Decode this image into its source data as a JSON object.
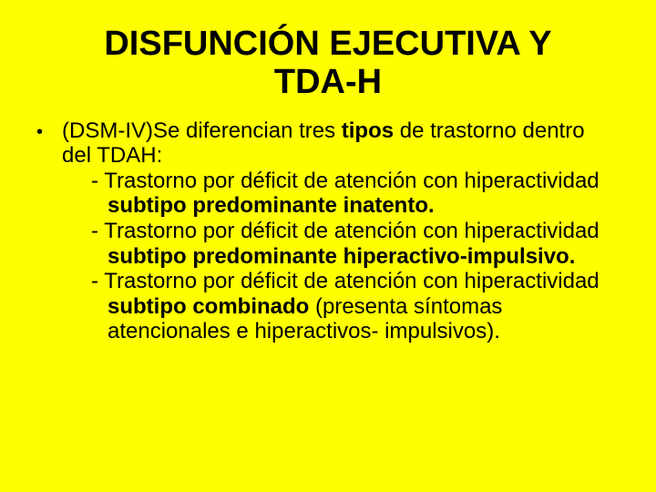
{
  "background_color": "#ffff00",
  "text_color": "#000000",
  "font_family": "Comic Sans MS",
  "title": {
    "line1": "DISFUNCIÓN EJECUTIVA Y",
    "line2": "TDA-H",
    "fontsize": 38,
    "weight": "bold",
    "align": "center"
  },
  "bullet": {
    "marker": "•",
    "intro_pre": "(DSM-IV)Se diferencian tres ",
    "intro_bold": "tipos",
    "intro_post": " de trastorno dentro del TDAH:",
    "item1_pre": "-  Trastorno por déficit de atención con hiperactividad ",
    "item1_bold": "subtipo predominante inatento.",
    "item2_pre": "- Trastorno por déficit de atención con hiperactividad ",
    "item2_bold": "subtipo predominante hiperactivo-impulsivo.",
    "item3_pre": "- Trastorno por déficit de atención con hiperactividad ",
    "item3_bold": "subtipo combinado",
    "item3_post": " (presenta síntomas atencionales e hiperactivos- impulsivos",
    "item3_paren": ").",
    "fontsize": 24
  }
}
